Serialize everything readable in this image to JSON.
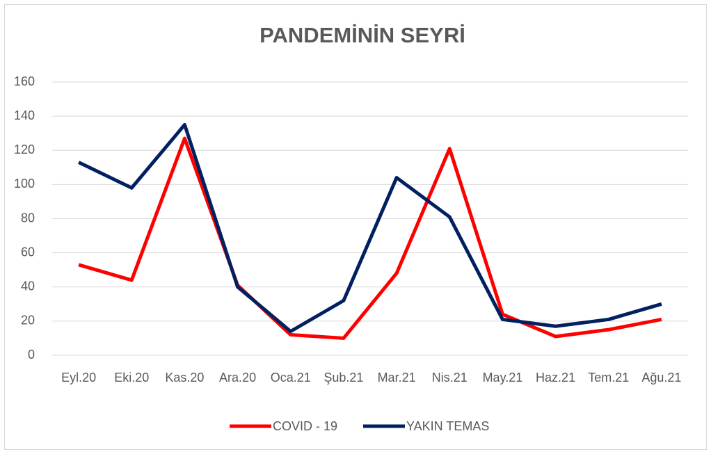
{
  "chart_data": {
    "type": "line",
    "title": "PANDEMİNİN SEYRİ",
    "categories": [
      "Eyl.20",
      "Eki.20",
      "Kas.20",
      "Ara.20",
      "Oca.21",
      "Şub.21",
      "Mar.21",
      "Nis.21",
      "May.21",
      "Haz.21",
      "Tem.21",
      "Ağu.21"
    ],
    "series": [
      {
        "name": "COVID - 19",
        "color": "#ff0000",
        "values": [
          53,
          44,
          127,
          41,
          12,
          10,
          48,
          121,
          24,
          11,
          15,
          21
        ]
      },
      {
        "name": "YAKIN TEMAS",
        "color": "#002060",
        "values": [
          113,
          98,
          135,
          40,
          14,
          32,
          104,
          81,
          21,
          17,
          21,
          30
        ]
      }
    ],
    "ylim": [
      0,
      160
    ],
    "yticks": [
      0,
      20,
      40,
      60,
      80,
      100,
      120,
      140,
      160
    ],
    "grid": true,
    "legend": "bottom"
  }
}
